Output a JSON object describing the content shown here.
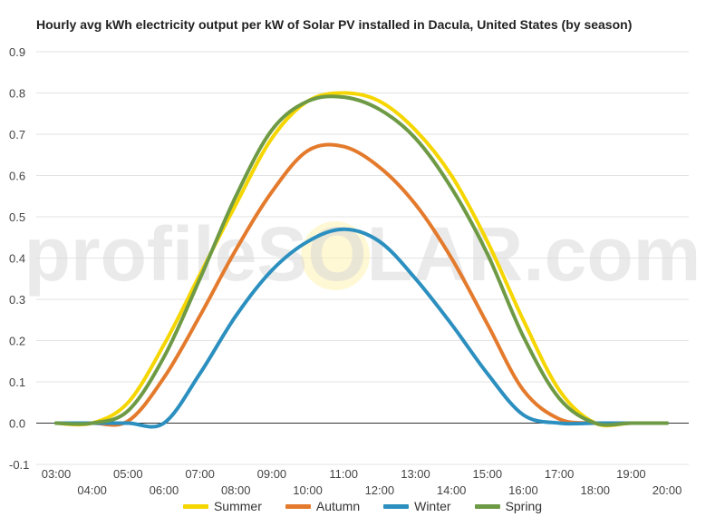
{
  "chart_data": {
    "type": "line",
    "title": "Hourly avg kWh electricity output per kW of Solar PV installed in Dacula, United States (by season)",
    "watermark": "profileSOLAR.com",
    "xlabel": "",
    "ylabel": "",
    "ylim": [
      -0.1,
      0.9
    ],
    "yticks": [
      "-0.1",
      "0.0",
      "0.1",
      "0.2",
      "0.3",
      "0.4",
      "0.5",
      "0.6",
      "0.7",
      "0.8",
      "0.9"
    ],
    "x": [
      "03:00",
      "04:00",
      "05:00",
      "06:00",
      "07:00",
      "08:00",
      "09:00",
      "10:00",
      "11:00",
      "12:00",
      "13:00",
      "14:00",
      "15:00",
      "16:00",
      "17:00",
      "18:00",
      "19:00",
      "20:00"
    ],
    "grid": true,
    "legend_position": "bottom",
    "series": [
      {
        "name": "Summer",
        "color": "#f6d600",
        "values": [
          0,
          0,
          0.05,
          0.19,
          0.36,
          0.53,
          0.69,
          0.78,
          0.8,
          0.78,
          0.71,
          0.6,
          0.44,
          0.25,
          0.08,
          0.0,
          0,
          0
        ]
      },
      {
        "name": "Autumn",
        "color": "#e47a2c",
        "values": [
          0,
          0,
          0.005,
          0.11,
          0.26,
          0.42,
          0.56,
          0.66,
          0.67,
          0.62,
          0.53,
          0.4,
          0.24,
          0.08,
          0.01,
          0,
          0,
          0
        ]
      },
      {
        "name": "Winter",
        "color": "#2b8fbf",
        "values": [
          0,
          0,
          0,
          0,
          0.12,
          0.26,
          0.37,
          0.44,
          0.47,
          0.44,
          0.35,
          0.24,
          0.12,
          0.02,
          0,
          0,
          0,
          0
        ]
      },
      {
        "name": "Spring",
        "color": "#6e9a45",
        "values": [
          0,
          0,
          0.03,
          0.16,
          0.35,
          0.55,
          0.71,
          0.78,
          0.79,
          0.76,
          0.69,
          0.57,
          0.41,
          0.21,
          0.06,
          0,
          0,
          0
        ]
      }
    ]
  }
}
